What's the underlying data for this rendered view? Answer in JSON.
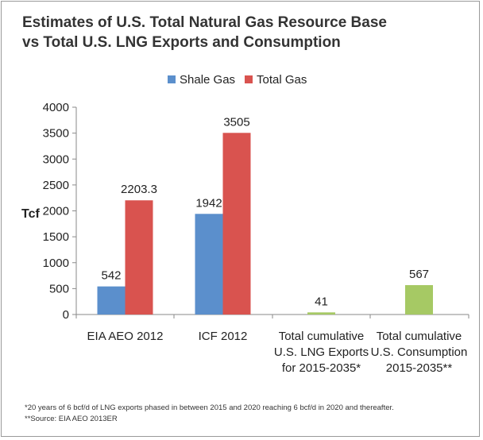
{
  "title": [
    "Estimates of U.S. Total Natural Gas Resource Base",
    "vs Total U.S. LNG Exports and Consumption"
  ],
  "footnotes": [
    "*20 years of 6 bcf/d of LNG exports phased in between 2015 and 2020 reaching 6 bcf/d in 2020 and thereafter.",
    "**Source: EIA AEO 2013ER"
  ],
  "chart_data": {
    "type": "bar",
    "ylabel": "Tcf",
    "xlabel": "",
    "ylim": [
      0,
      4000
    ],
    "yticks": [
      0,
      500,
      1000,
      1500,
      2000,
      2500,
      3000,
      3500,
      4000
    ],
    "grid": false,
    "legend_position": "top",
    "legend": [
      {
        "name": "Shale Gas",
        "color": "#5b8fcc"
      },
      {
        "name": "Total Gas",
        "color": "#d9534f"
      }
    ],
    "groups": [
      {
        "label": [
          "EIA AEO 2012"
        ],
        "bars": [
          {
            "series": "Shale Gas",
            "value": 542,
            "label": "542",
            "color": "#5b8fcc"
          },
          {
            "series": "Total Gas",
            "value": 2203.3,
            "label": "2203.3",
            "color": "#d9534f"
          }
        ]
      },
      {
        "label": [
          "ICF 2012"
        ],
        "bars": [
          {
            "series": "Shale Gas",
            "value": 1942,
            "label": "1942",
            "color": "#5b8fcc"
          },
          {
            "series": "Total Gas",
            "value": 3505,
            "label": "3505",
            "color": "#d9534f"
          }
        ]
      },
      {
        "label": [
          "Total cumulative",
          "U.S. LNG Exports",
          "for 2015-2035*"
        ],
        "bars": [
          {
            "series": "",
            "value": 41,
            "label": "41",
            "color": "#a6c964"
          }
        ]
      },
      {
        "label": [
          "Total cumulative",
          "U.S. Consumption",
          "2015-2035**"
        ],
        "bars": [
          {
            "series": "",
            "value": 567,
            "label": "567",
            "color": "#a6c964"
          }
        ]
      }
    ]
  }
}
